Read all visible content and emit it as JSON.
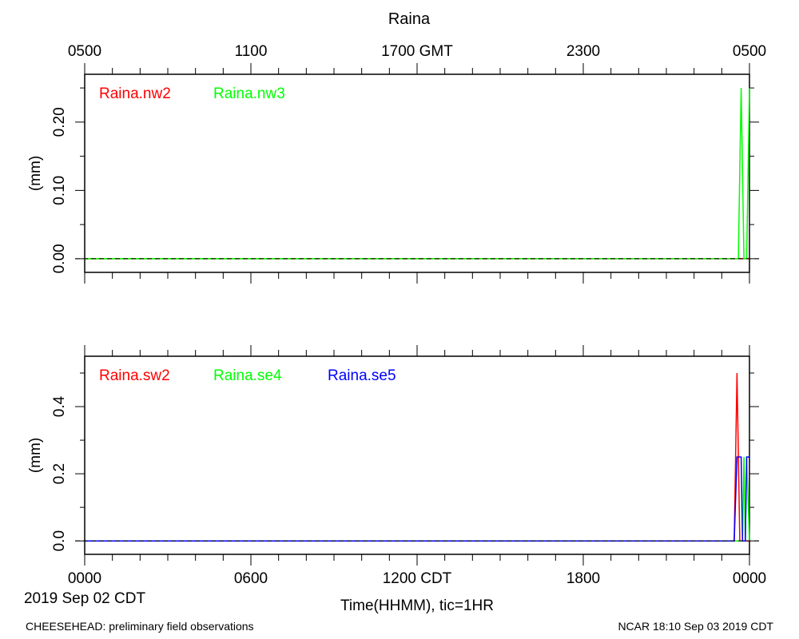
{
  "title": "Raina",
  "top_axis": {
    "tick_labels": [
      "0500",
      "1100",
      "1700 GMT",
      "2300",
      "0500"
    ],
    "tick_hours": [
      0,
      6,
      12,
      18,
      24
    ]
  },
  "bottom_axis": {
    "tick_labels": [
      "0000",
      "0600",
      "1200 CDT",
      "1800",
      "0000"
    ],
    "tick_hours": [
      0,
      6,
      12,
      18,
      24
    ],
    "date_label": "2019 Sep 02 CDT",
    "xlabel": "Time(HHMM), tic=1HR"
  },
  "footer": {
    "left": "CHEESEHEAD: preliminary field observations",
    "right": "NCAR 18:10 Sep 03 2019 CDT"
  },
  "chart_data": [
    {
      "type": "line",
      "panel": "top",
      "xlabel": "",
      "ylabel": "(mm)",
      "xlim": [
        0,
        24
      ],
      "ylim": [
        -0.02,
        0.27
      ],
      "yticks": [
        0.0,
        0.1,
        0.2
      ],
      "ytick_labels": [
        "0.00",
        "0.10",
        "0.20"
      ],
      "zero_line": true,
      "series": [
        {
          "name": "Raina.nw2",
          "color": "#ff0000",
          "x": [
            0,
            24
          ],
          "y": [
            0,
            0
          ]
        },
        {
          "name": "Raina.nw3",
          "color": "#00ff00",
          "x": [
            0,
            23.6,
            23.7,
            23.8,
            23.9,
            24.0
          ],
          "y": [
            0,
            0,
            0.25,
            0,
            0,
            0.25
          ]
        }
      ]
    },
    {
      "type": "line",
      "panel": "bottom",
      "xlabel": "",
      "ylabel": "(mm)",
      "xlim": [
        0,
        24
      ],
      "ylim": [
        -0.04,
        0.55
      ],
      "yticks": [
        0.0,
        0.2,
        0.4
      ],
      "ytick_labels": [
        "0.0",
        "0.2",
        "0.4"
      ],
      "zero_line": true,
      "series": [
        {
          "name": "Raina.sw2",
          "color": "#ff0000",
          "x": [
            0,
            23.45,
            23.55,
            23.65,
            23.75,
            24.0
          ],
          "y": [
            0,
            0,
            0.5,
            0,
            0,
            0
          ]
        },
        {
          "name": "Raina.se4",
          "color": "#00ff00",
          "x": [
            0,
            23.75,
            23.8,
            23.85,
            23.9,
            24.0
          ],
          "y": [
            0,
            0,
            0.25,
            0,
            0.25,
            0
          ]
        },
        {
          "name": "Raina.se5",
          "color": "#0000ff",
          "x": [
            0,
            23.45,
            23.55,
            23.7,
            23.75,
            23.85,
            23.9,
            24.0
          ],
          "y": [
            0,
            0,
            0.25,
            0.25,
            0,
            0,
            0.25,
            0.25
          ]
        }
      ]
    }
  ]
}
